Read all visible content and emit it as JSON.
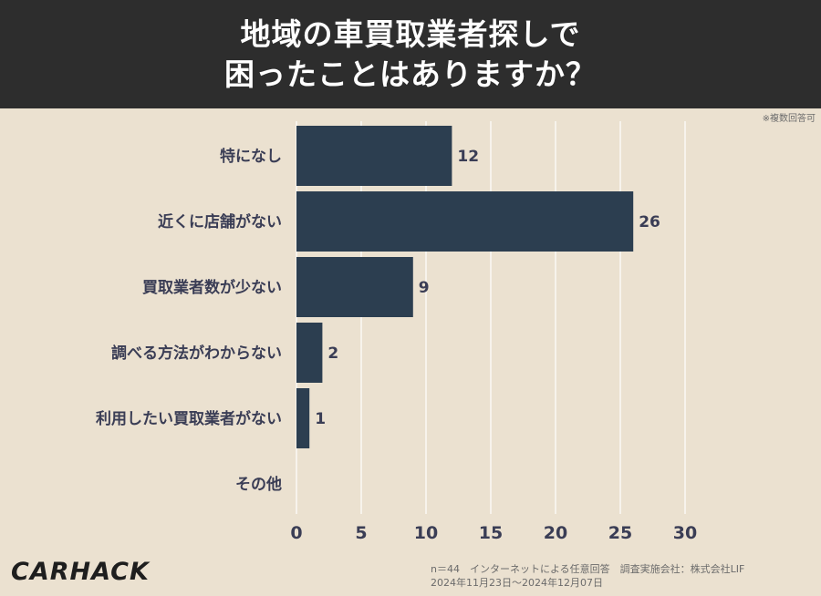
{
  "header": {
    "title_line1": "地域の車買取業者探しで",
    "title_line2": "困ったことはありますか？"
  },
  "note": "※複数回答可",
  "footer": {
    "line1": "n＝44　インターネットによる任意回答　調査実施会社：株式会社LIF",
    "line2": "2024年11月23日〜2024年12月07日"
  },
  "logo": "CARHACK",
  "colors": {
    "bar": "#2c3e50",
    "header_bg": "#2d2d2d",
    "background": "#ebe1d0",
    "label_text": "#3a3d55"
  },
  "chart_data": {
    "type": "bar",
    "orientation": "horizontal",
    "categories": [
      "特になし",
      "近くに店舗がない",
      "買取業者数が少ない",
      "調べる方法がわからない",
      "利用したい買取業者がない",
      "その他"
    ],
    "values": [
      12,
      26,
      9,
      2,
      1,
      0
    ],
    "xlim": [
      0,
      30
    ],
    "xticks": [
      0,
      5,
      10,
      15,
      20,
      25,
      30
    ],
    "grid": true
  }
}
